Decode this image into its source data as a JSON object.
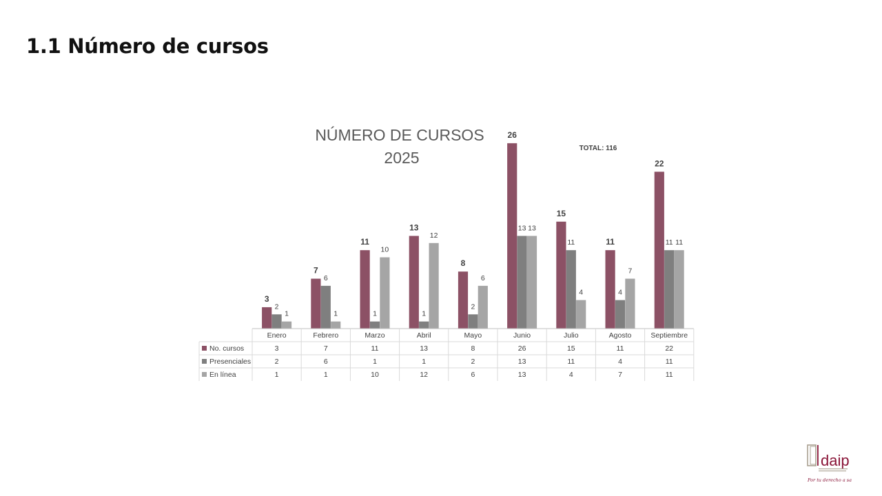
{
  "slide": {
    "title": "1.1 Número de cursos"
  },
  "chart_data": {
    "type": "bar",
    "title_lines": [
      "NÚMERO DE CURSOS",
      "2025"
    ],
    "annotation": "TOTAL: 116",
    "categories": [
      "Enero",
      "Febrero",
      "Marzo",
      "Abril",
      "Mayo",
      "Junio",
      "Julio",
      "Agosto",
      "Septiembre"
    ],
    "series": [
      {
        "name": "No. cursos",
        "color": "#8c5165",
        "values": [
          3,
          7,
          11,
          13,
          8,
          26,
          15,
          11,
          22
        ]
      },
      {
        "name": "Presenciales",
        "color": "#7f7f7f",
        "values": [
          2,
          6,
          1,
          1,
          2,
          13,
          11,
          4,
          11
        ]
      },
      {
        "name": "En línea",
        "color": "#a5a5a5",
        "values": [
          1,
          1,
          10,
          12,
          6,
          13,
          4,
          7,
          11
        ]
      }
    ],
    "ylim": [
      0,
      26
    ],
    "grid": false,
    "legend": "data-table",
    "data_table": true
  },
  "logo": {
    "text": "idaip",
    "tagline": "Por tu derecho a saber"
  }
}
